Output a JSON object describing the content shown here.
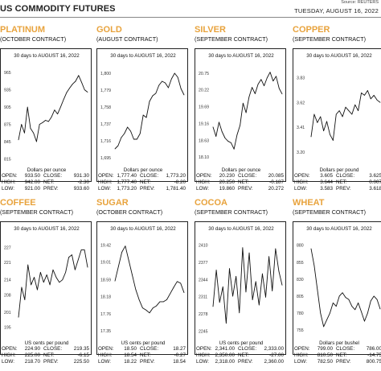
{
  "header": {
    "title": "US COMMODITY FUTURES",
    "source": "Source: REUTERS",
    "date": "TUESDAY, AUGUST 16, 2022"
  },
  "colors": {
    "accent": "#e8a33d",
    "line": "#111111",
    "frame": "#222222"
  },
  "panels": [
    {
      "name": "PLATINUM",
      "contract": "(OCTOBER CONTRACT)",
      "chart_title": "30 days to AUGUST 16, 2022",
      "unit": "Dollars per ounce",
      "stats": {
        "open_label": "OPEN:",
        "open": "933.50",
        "close_label": "CLOSE:",
        "close": "931.30",
        "high_label": "HIGH:",
        "high": "942.00",
        "net_label": "NET:",
        "net": "-2.30",
        "low_label": "LOW:",
        "low": "921.00",
        "prev_label": "PREV:",
        "prev": "933.60"
      }
    },
    {
      "name": "GOLD",
      "contract": "(AUGUST CONTRACT)",
      "chart_title": "30 days to AUGUST 16, 2022",
      "unit": "Dollars per ounce",
      "stats": {
        "open_label": "OPEN:",
        "open": "1,777.40",
        "close_label": "CLOSE:",
        "close": "1,773.20",
        "high_label": "HIGH:",
        "high": "1,777.40",
        "net_label": "NET:",
        "net": "-8.20",
        "low_label": "LOW:",
        "low": "1,773.20",
        "prev_label": "PREV:",
        "prev": "1,781.40"
      }
    },
    {
      "name": "SILVER",
      "contract": "(SEPTEMBER CONTRACT)",
      "chart_title": "30 days to AUGUST 16, 2022",
      "unit": "Dollars per ounce",
      "stats": {
        "open_label": "OPEN:",
        "open": "20.230",
        "close_label": "CLOSE:",
        "close": "20.085",
        "high_label": "HIGH:",
        "high": "20.250",
        "net_label": "NET:",
        "net": "-0.187",
        "low_label": "LOW:",
        "low": "19.860",
        "prev_label": "PREV:",
        "prev": "20.272"
      }
    },
    {
      "name": "COPPER",
      "contract": "(SEPTEMBER CONTRACT)",
      "chart_title": "30 days to AUGUST 16, 2022",
      "unit": "Dollars per pound",
      "stats": {
        "open_label": "OPEN:",
        "open": "3.605",
        "close_label": "CLOSE:",
        "close": "3.625",
        "high_label": "HIGH:",
        "high": "3.644",
        "net_label": "NET:",
        "net": "0.007",
        "low_label": "LOW:",
        "low": "3.583",
        "prev_label": "PREV:",
        "prev": "3.618"
      }
    },
    {
      "name": "COFFEE",
      "contract": "(SEPTEMBER CONTRACT)",
      "chart_title": "30 days to AUGUST 16, 2022",
      "unit": "US cents per pound",
      "stats": {
        "open_label": "OPEN:",
        "open": "224.90",
        "close_label": "CLOSE:",
        "close": "219.35",
        "high_label": "HIGH:",
        "high": "225.00",
        "net_label": "NET:",
        "net": "-6.15",
        "low_label": "LOW:",
        "low": "218.70",
        "prev_label": "PREV:",
        "prev": "225.50"
      }
    },
    {
      "name": "SUGAR",
      "contract": "(OCTOBER CONTRACT)",
      "chart_title": "30 days to AUGUST 16, 2022",
      "unit": "US cents per pound",
      "stats": {
        "open_label": "OPEN:",
        "open": "18.50",
        "close_label": "CLOSE:",
        "close": "18.27",
        "high_label": "HIGH:",
        "high": "18.54",
        "net_label": "NET:",
        "net": "-0.27",
        "low_label": "LOW:",
        "low": "18.22",
        "prev_label": "PREV:",
        "prev": "18.54"
      }
    },
    {
      "name": "COCOA",
      "contract": "(SEPTEMBER CONTRACT)",
      "chart_title": "30 days to AUGUST 16, 2022",
      "unit": "US cents per pound",
      "stats": {
        "open_label": "OPEN:",
        "open": "2,341.00",
        "close_label": "CLOSE:",
        "close": "2,333.00",
        "high_label": "HIGH:",
        "high": "2,350.00",
        "net_label": "NET:",
        "net": "-27.00",
        "low_label": "LOW:",
        "low": "2,318.00",
        "prev_label": "PREV:",
        "prev": "2,360.00"
      }
    },
    {
      "name": "WHEAT",
      "contract": "(SEPTEMBER CONTRACT)",
      "chart_title": "30 days to AUGUST 16, 2022",
      "unit": "Dollars per bushel",
      "stats": {
        "open_label": "OPEN:",
        "open": "799.00",
        "close_label": "CLOSE:",
        "close": "786.00",
        "high_label": "HIGH:",
        "high": "810.50",
        "net_label": "NET:",
        "net": "-14.75",
        "low_label": "LOW:",
        "low": "782.50",
        "prev_label": "PREV:",
        "prev": "800.75"
      }
    }
  ],
  "chart_data": [
    {
      "type": "line",
      "title": "30 days to AUGUST 16, 2022",
      "ylabel": "Dollars per ounce",
      "yticks": [
        "965",
        "935",
        "905",
        "875",
        "845",
        "815"
      ],
      "ylim": [
        810,
        975
      ],
      "series": [
        {
          "values": [
            848,
            875,
            860,
            905,
            868,
            860,
            845,
            875,
            878,
            882,
            880,
            888,
            900,
            893,
            905,
            918,
            930,
            938,
            945,
            950,
            960,
            948,
            935,
            931
          ]
        }
      ]
    },
    {
      "type": "line",
      "title": "30 days to AUGUST 16, 2022",
      "ylabel": "Dollars per ounce",
      "yticks": [
        "1,800",
        "1,779",
        "1,758",
        "1,737",
        "1,716",
        "1,695"
      ],
      "ylim": [
        1690,
        1808
      ],
      "series": [
        {
          "values": [
            1706,
            1710,
            1720,
            1725,
            1733,
            1728,
            1718,
            1718,
            1725,
            1748,
            1745,
            1765,
            1772,
            1775,
            1785,
            1790,
            1788,
            1782,
            1793,
            1800,
            1795,
            1781,
            1773
          ]
        }
      ]
    },
    {
      "type": "line",
      "title": "30 days to AUGUST 16, 2022",
      "ylabel": "Dollars per ounce",
      "yticks": [
        "20.75",
        "20.22",
        "19.69",
        "19.16",
        "18.63",
        "18.10"
      ],
      "ylim": [
        17.95,
        20.95
      ],
      "series": [
        {
          "values": [
            19.05,
            18.75,
            19.2,
            18.9,
            18.7,
            18.6,
            18.55,
            18.35,
            18.8,
            19.1,
            19.8,
            19.5,
            20.0,
            20.3,
            20.1,
            20.4,
            20.55,
            20.35,
            20.6,
            20.78,
            20.5,
            20.65,
            20.27,
            20.09
          ]
        }
      ]
    },
    {
      "type": "line",
      "title": "30 days to AUGUST 16, 2022",
      "ylabel": "Dollars per pound",
      "yticks": [
        "3.83",
        "3.62",
        "3.41",
        "3.20"
      ],
      "ylim": [
        3.12,
        3.92
      ],
      "series": [
        {
          "values": [
            3.33,
            3.52,
            3.45,
            3.5,
            3.38,
            3.46,
            3.35,
            3.3,
            3.52,
            3.55,
            3.5,
            3.58,
            3.55,
            3.52,
            3.6,
            3.55,
            3.7,
            3.68,
            3.72,
            3.65,
            3.68,
            3.64,
            3.62
          ]
        }
      ]
    },
    {
      "type": "line",
      "title": "30 days to AUGUST 16, 2022",
      "ylabel": "US cents per pound",
      "yticks": [
        "227",
        "221",
        "214",
        "208",
        "201",
        "195"
      ],
      "ylim": [
        192,
        230
      ],
      "series": [
        {
          "values": [
            199,
            211,
            206,
            220,
            212,
            215,
            210,
            217,
            213,
            216,
            212,
            218,
            215,
            213,
            214,
            217,
            223,
            224,
            218,
            222,
            226,
            226,
            219
          ]
        }
      ]
    },
    {
      "type": "line",
      "title": "30 days to AUGUST 16, 2022",
      "ylabel": "US cents per pound",
      "yticks": [
        "19.42",
        "19.01",
        "18.59",
        "18.18",
        "17.76",
        "17.35"
      ],
      "ylim": [
        17.25,
        19.55
      ],
      "series": [
        {
          "values": [
            18.55,
            18.9,
            19.25,
            19.4,
            19.05,
            18.7,
            18.35,
            18.1,
            17.9,
            17.85,
            17.78,
            17.9,
            17.95,
            18.05,
            18.05,
            18.1,
            18.25,
            18.4,
            18.54,
            18.5,
            18.27
          ]
        }
      ]
    },
    {
      "type": "line",
      "title": "30 days to AUGUST 16, 2022",
      "ylabel": "US cents per pound",
      "yticks": [
        "2410",
        "2377",
        "2344",
        "2311",
        "2278",
        "2245"
      ],
      "ylim": [
        2238,
        2420
      ],
      "series": [
        {
          "values": [
            2292,
            2362,
            2300,
            2330,
            2260,
            2365,
            2312,
            2350,
            2280,
            2405,
            2320,
            2395,
            2305,
            2340,
            2295,
            2355,
            2310,
            2388,
            2322,
            2403,
            2360,
            2333
          ]
        }
      ]
    },
    {
      "type": "line",
      "title": "30 days to AUGUST 16, 2022",
      "ylabel": "Dollars per bushel",
      "yticks": [
        "880",
        "855",
        "830",
        "805",
        "780",
        "755"
      ],
      "ylim": [
        748,
        888
      ],
      "series": [
        {
          "values": [
            875,
            850,
            815,
            780,
            760,
            770,
            780,
            795,
            790,
            805,
            810,
            803,
            800,
            790,
            785,
            795,
            782,
            768,
            780,
            798,
            805,
            800,
            786
          ]
        }
      ]
    }
  ]
}
